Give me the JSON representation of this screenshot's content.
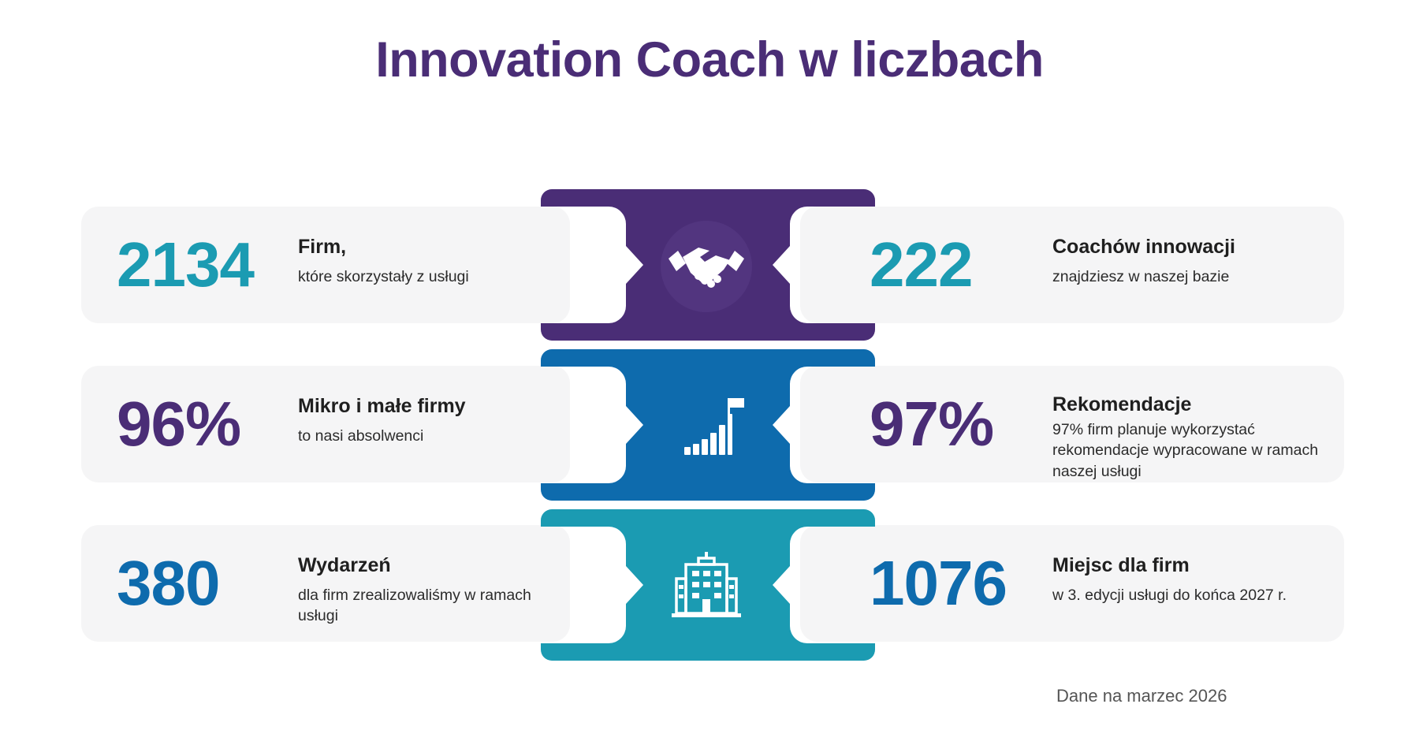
{
  "title": "Innovation Coach w liczbach",
  "stats_left": [
    {
      "value": "2134",
      "label": "Firm,",
      "desc": "które skorzystały z usługi"
    },
    {
      "value": "96%",
      "label": "Mikro i małe firmy",
      "desc": "to nasi absolwenci"
    },
    {
      "value": "380",
      "label": "Wydarzeń",
      "desc": "dla firm zrealizowaliśmy w ramach usługi"
    }
  ],
  "stats_right": [
    {
      "value": "222",
      "label": "Coachów innowacji",
      "desc": "znajdziesz w naszej bazie"
    },
    {
      "value": "97%",
      "label": "Rekomendacje",
      "desc": "97% firm planuje wykorzystać rekomendacje wypracowane w ramach naszej usługi"
    },
    {
      "value": "1076",
      "label": "Miejsc dla firm",
      "desc": "w 3. edycji usługi do końca 2027 r."
    }
  ],
  "connectors": [
    {
      "color": "#4a2d76",
      "icon": "handshake-icon"
    },
    {
      "color": "#0e6bad",
      "icon": "growth-chart-icon"
    },
    {
      "color": "#1b9bb2",
      "icon": "building-icon"
    }
  ],
  "colors": {
    "teal": "#1b9bb2",
    "purple": "#4a2d76",
    "blue": "#0e6bad",
    "card": "#f5f5f6"
  },
  "footnote": "Dane na marzec 2026"
}
